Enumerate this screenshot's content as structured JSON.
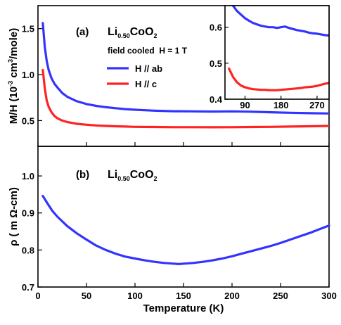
{
  "chart_data": [
    {
      "type": "line",
      "panel_label": "(a)",
      "compound": {
        "main": "Li",
        "sub": "0.50",
        "main2": "CoO",
        "sub2": "2"
      },
      "condition": "field cooled  H = 1 T",
      "ylabel": {
        "pre": "M/H (10",
        "sup1": "-3",
        "mid": " cm",
        "sup2": "3",
        "post": "/mole)"
      },
      "xlim": [
        0,
        300
      ],
      "ylim": [
        0.22,
        1.75
      ],
      "yticks": [
        0.5,
        1.0,
        1.5
      ],
      "ytick_labels": [
        "0.5",
        "1.0",
        "1.5"
      ],
      "xticks": [
        0,
        50,
        100,
        150,
        200,
        250,
        300
      ],
      "legend_position": "upper-middle",
      "series": [
        {
          "name": "H // ab",
          "color": "#3333ff",
          "x": [
            5,
            7,
            9,
            11,
            14,
            17,
            20,
            25,
            30,
            40,
            50,
            60,
            70,
            80,
            90,
            100,
            120,
            140,
            160,
            180,
            200,
            220,
            240,
            260,
            280,
            300
          ],
          "y": [
            1.56,
            1.3,
            1.15,
            1.05,
            0.96,
            0.9,
            0.86,
            0.8,
            0.76,
            0.71,
            0.68,
            0.66,
            0.645,
            0.635,
            0.625,
            0.618,
            0.608,
            0.602,
            0.6,
            0.598,
            0.6,
            0.596,
            0.59,
            0.585,
            0.58,
            0.577
          ]
        },
        {
          "name": "H // c",
          "color": "#ff2222",
          "x": [
            5,
            7,
            9,
            11,
            14,
            17,
            20,
            25,
            30,
            40,
            50,
            60,
            70,
            80,
            90,
            100,
            120,
            140,
            160,
            180,
            200,
            220,
            240,
            260,
            280,
            300
          ],
          "y": [
            1.05,
            0.85,
            0.72,
            0.65,
            0.59,
            0.55,
            0.525,
            0.5,
            0.485,
            0.465,
            0.455,
            0.447,
            0.442,
            0.438,
            0.435,
            0.432,
            0.43,
            0.428,
            0.428,
            0.427,
            0.428,
            0.43,
            0.432,
            0.435,
            0.438,
            0.442
          ]
        }
      ]
    },
    {
      "type": "line",
      "role": "inset",
      "xlim": [
        40,
        300
      ],
      "ylim": [
        0.4,
        0.66
      ],
      "xticks": [
        90,
        180,
        270
      ],
      "xtick_labels": [
        "90",
        "180",
        "270"
      ],
      "yticks": [
        0.4,
        0.5,
        0.6
      ],
      "ytick_labels": [
        "0.4",
        "0.5",
        "0.6"
      ],
      "series": [
        {
          "color": "#3333ff",
          "x": [
            50,
            60,
            70,
            80,
            90,
            100,
            110,
            120,
            130,
            140,
            150,
            160,
            170,
            180,
            190,
            200,
            210,
            220,
            230,
            240,
            250,
            260,
            270,
            280,
            290,
            300
          ],
          "y": [
            0.68,
            0.66,
            0.645,
            0.635,
            0.625,
            0.618,
            0.612,
            0.608,
            0.604,
            0.602,
            0.6,
            0.6,
            0.598,
            0.6,
            0.602,
            0.598,
            0.595,
            0.592,
            0.59,
            0.588,
            0.585,
            0.583,
            0.582,
            0.58,
            0.578,
            0.577
          ]
        },
        {
          "color": "#ff2222",
          "x": [
            50,
            60,
            70,
            80,
            90,
            100,
            110,
            120,
            130,
            140,
            150,
            160,
            170,
            180,
            190,
            200,
            210,
            220,
            230,
            240,
            250,
            260,
            270,
            280,
            290,
            300
          ],
          "y": [
            0.485,
            0.462,
            0.447,
            0.438,
            0.433,
            0.43,
            0.428,
            0.427,
            0.426,
            0.426,
            0.425,
            0.425,
            0.425,
            0.426,
            0.427,
            0.428,
            0.429,
            0.43,
            0.431,
            0.433,
            0.434,
            0.435,
            0.437,
            0.44,
            0.443,
            0.445
          ]
        }
      ]
    },
    {
      "type": "line",
      "panel_label": "(b)",
      "compound": {
        "main": "Li",
        "sub": "0.50",
        "main2": "CoO",
        "sub2": "2"
      },
      "ylabel": "ρ ( m Ω-cm)",
      "xlabel": "Temperature (K)",
      "xlim": [
        0,
        300
      ],
      "ylim": [
        0.7,
        1.08
      ],
      "xticks": [
        0,
        50,
        100,
        150,
        200,
        250,
        300
      ],
      "xtick_labels": [
        "0",
        "50",
        "100",
        "150",
        "200",
        "250",
        "300"
      ],
      "yticks": [
        0.7,
        0.8,
        0.9,
        1.0
      ],
      "ytick_labels": [
        "0.7",
        "0.8",
        "0.9",
        "1.0"
      ],
      "series": [
        {
          "color": "#3333ff",
          "x": [
            5,
            10,
            15,
            20,
            30,
            40,
            50,
            60,
            70,
            80,
            90,
            100,
            110,
            120,
            130,
            140,
            145,
            150,
            160,
            170,
            180,
            190,
            200,
            210,
            220,
            230,
            240,
            250,
            260,
            270,
            280,
            290,
            300
          ],
          "y": [
            0.946,
            0.925,
            0.905,
            0.89,
            0.865,
            0.845,
            0.828,
            0.812,
            0.8,
            0.79,
            0.782,
            0.777,
            0.772,
            0.768,
            0.765,
            0.763,
            0.762,
            0.763,
            0.765,
            0.768,
            0.772,
            0.777,
            0.783,
            0.79,
            0.797,
            0.804,
            0.811,
            0.819,
            0.828,
            0.837,
            0.846,
            0.856,
            0.866
          ]
        }
      ]
    }
  ]
}
